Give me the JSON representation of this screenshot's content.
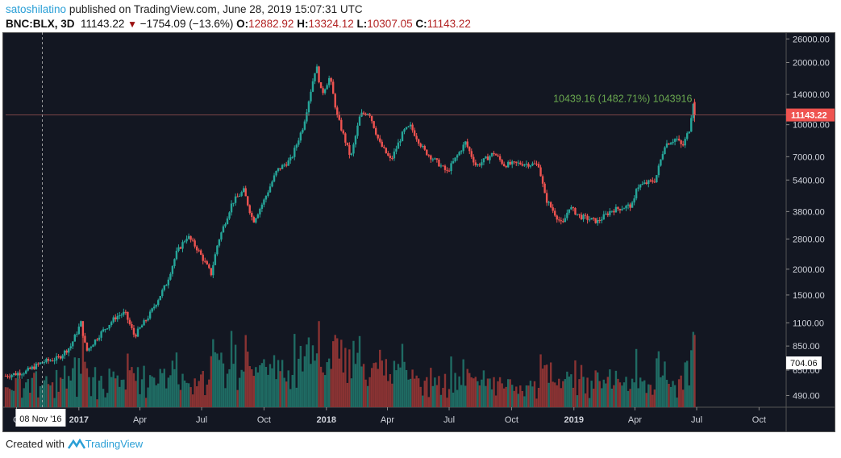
{
  "header": {
    "user": "satoshilatino",
    "published": "published on TradingView.com, June 28, 2019 15:07:31 UTC",
    "symbol": "BNC:BLX, 3D",
    "last": "11143.22",
    "change": "−1754.09 (−13.6%)",
    "o_label": "O:",
    "o": "12882.92",
    "h_label": "H:",
    "h": "13324.12",
    "l_label": "L:",
    "l": "10307.05",
    "c_label": "C:",
    "c": "11143.22"
  },
  "footer": {
    "created": "Created with",
    "brand": "TradingView"
  },
  "colors": {
    "background": "#131722",
    "up": "#26a69a",
    "down": "#ef5350",
    "up_volume": "#1f6b63",
    "down_volume": "#8a3333",
    "annotation": "#6aa84f",
    "price_label": "#ef5350"
  },
  "chart_data": {
    "type": "candlestick",
    "yscale": "log",
    "ylim": [
      430,
      28000
    ],
    "xlim": [
      "2016-09-15",
      "2019-11-10"
    ],
    "grid": false,
    "y_ticks": [
      "26000.00",
      "20000.00",
      "14000.00",
      "10000.00",
      "7000.00",
      "5400.00",
      "3800.00",
      "2800.00",
      "2000.00",
      "1500.00",
      "1100.00",
      "850.00",
      "650.00",
      "490.00"
    ],
    "x_ticks": [
      {
        "label": "O",
        "date": "2016-10-01"
      },
      {
        "label": "2017",
        "date": "2017-01-01"
      },
      {
        "label": "Apr",
        "date": "2017-04-01"
      },
      {
        "label": "Jul",
        "date": "2017-07-01"
      },
      {
        "label": "Oct",
        "date": "2017-10-01"
      },
      {
        "label": "2018",
        "date": "2018-01-01"
      },
      {
        "label": "Apr",
        "date": "2018-04-01"
      },
      {
        "label": "Jul",
        "date": "2018-07-01"
      },
      {
        "label": "Oct",
        "date": "2018-10-01"
      },
      {
        "label": "2019",
        "date": "2019-01-01"
      },
      {
        "label": "Apr",
        "date": "2019-04-01"
      },
      {
        "label": "Jul",
        "date": "2019-07-01"
      },
      {
        "label": "Oct",
        "date": "2019-10-01"
      }
    ],
    "closes": [
      [
        "2016-09-15",
        610
      ],
      [
        "2016-10-15",
        640
      ],
      [
        "2016-11-08",
        710
      ],
      [
        "2016-12-01",
        740
      ],
      [
        "2016-12-20",
        850
      ],
      [
        "2017-01-04",
        1100
      ],
      [
        "2017-01-12",
        800
      ],
      [
        "2017-02-01",
        970
      ],
      [
        "2017-02-25",
        1180
      ],
      [
        "2017-03-10",
        1230
      ],
      [
        "2017-03-24",
        950
      ],
      [
        "2017-04-15",
        1200
      ],
      [
        "2017-05-10",
        1700
      ],
      [
        "2017-05-25",
        2400
      ],
      [
        "2017-06-10",
        2900
      ],
      [
        "2017-06-25",
        2500
      ],
      [
        "2017-07-15",
        1900
      ],
      [
        "2017-07-25",
        2700
      ],
      [
        "2017-08-15",
        4200
      ],
      [
        "2017-09-01",
        4800
      ],
      [
        "2017-09-15",
        3400
      ],
      [
        "2017-10-01",
        4300
      ],
      [
        "2017-10-20",
        6000
      ],
      [
        "2017-11-10",
        6800
      ],
      [
        "2017-11-28",
        9900
      ],
      [
        "2017-12-17",
        19500
      ],
      [
        "2017-12-25",
        14000
      ],
      [
        "2018-01-06",
        17000
      ],
      [
        "2018-01-17",
        11000
      ],
      [
        "2018-02-06",
        6900
      ],
      [
        "2018-02-20",
        11200
      ],
      [
        "2018-03-05",
        11500
      ],
      [
        "2018-03-20",
        8200
      ],
      [
        "2018-04-06",
        6700
      ],
      [
        "2018-04-25",
        9300
      ],
      [
        "2018-05-05",
        9800
      ],
      [
        "2018-05-25",
        7500
      ],
      [
        "2018-06-15",
        6500
      ],
      [
        "2018-06-28",
        5900
      ],
      [
        "2018-07-25",
        8200
      ],
      [
        "2018-08-10",
        6300
      ],
      [
        "2018-09-05",
        7300
      ],
      [
        "2018-09-20",
        6400
      ],
      [
        "2018-10-15",
        6500
      ],
      [
        "2018-11-10",
        6400
      ],
      [
        "2018-11-20",
        4400
      ],
      [
        "2018-12-15",
        3250
      ],
      [
        "2018-12-25",
        4000
      ],
      [
        "2019-01-10",
        3600
      ],
      [
        "2019-02-05",
        3400
      ],
      [
        "2019-02-25",
        3850
      ],
      [
        "2019-03-30",
        4100
      ],
      [
        "2019-04-03",
        5000
      ],
      [
        "2019-05-01",
        5400
      ],
      [
        "2019-05-15",
        8000
      ],
      [
        "2019-06-01",
        8600
      ],
      [
        "2019-06-10",
        7800
      ],
      [
        "2019-06-20",
        9500
      ],
      [
        "2019-06-26",
        12900
      ],
      [
        "2019-06-28",
        11143.22
      ]
    ],
    "last_price_label": "11143.22",
    "crosshair": {
      "date_label": "08 Nov '16",
      "date": "2016-11-08",
      "price_label": "704.06",
      "price": 704.06
    },
    "annotation": "10439.16 (1482.71%) 1043916"
  }
}
